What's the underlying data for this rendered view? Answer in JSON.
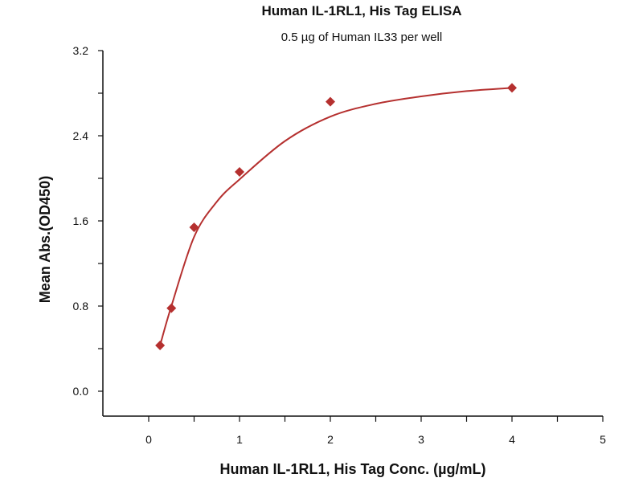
{
  "chart_data": {
    "type": "scatter",
    "title": "Human IL-1RL1, His Tag ELISA",
    "subtitle": "0.5 µg of Human IL33 per well",
    "xlabel": "Human IL-1RL1, His Tag Conc. (µg/mL)",
    "ylabel": "Mean Abs.(OD450)",
    "xlim": [
      -0.5,
      5
    ],
    "ylim": [
      -0.2,
      3.2
    ],
    "x_ticks": [
      "0",
      "1",
      "2",
      "3",
      "4",
      "5"
    ],
    "y_ticks": [
      "0.0",
      "0.8",
      "1.6",
      "2.4",
      "3.2"
    ],
    "grid": false,
    "color": "#b5302f",
    "series": [
      {
        "x": [
          0.125,
          0.25,
          0.5,
          1,
          2,
          4
        ],
        "values": [
          0.43,
          0.78,
          1.54,
          2.06,
          2.72,
          2.85
        ]
      }
    ],
    "fit_curve": {
      "x": [
        0.125,
        0.25,
        0.5,
        0.75,
        1,
        1.5,
        2,
        2.5,
        3,
        3.5,
        4
      ],
      "values": [
        0.43,
        0.8,
        1.45,
        1.78,
        1.99,
        2.35,
        2.58,
        2.7,
        2.77,
        2.82,
        2.85
      ]
    }
  }
}
